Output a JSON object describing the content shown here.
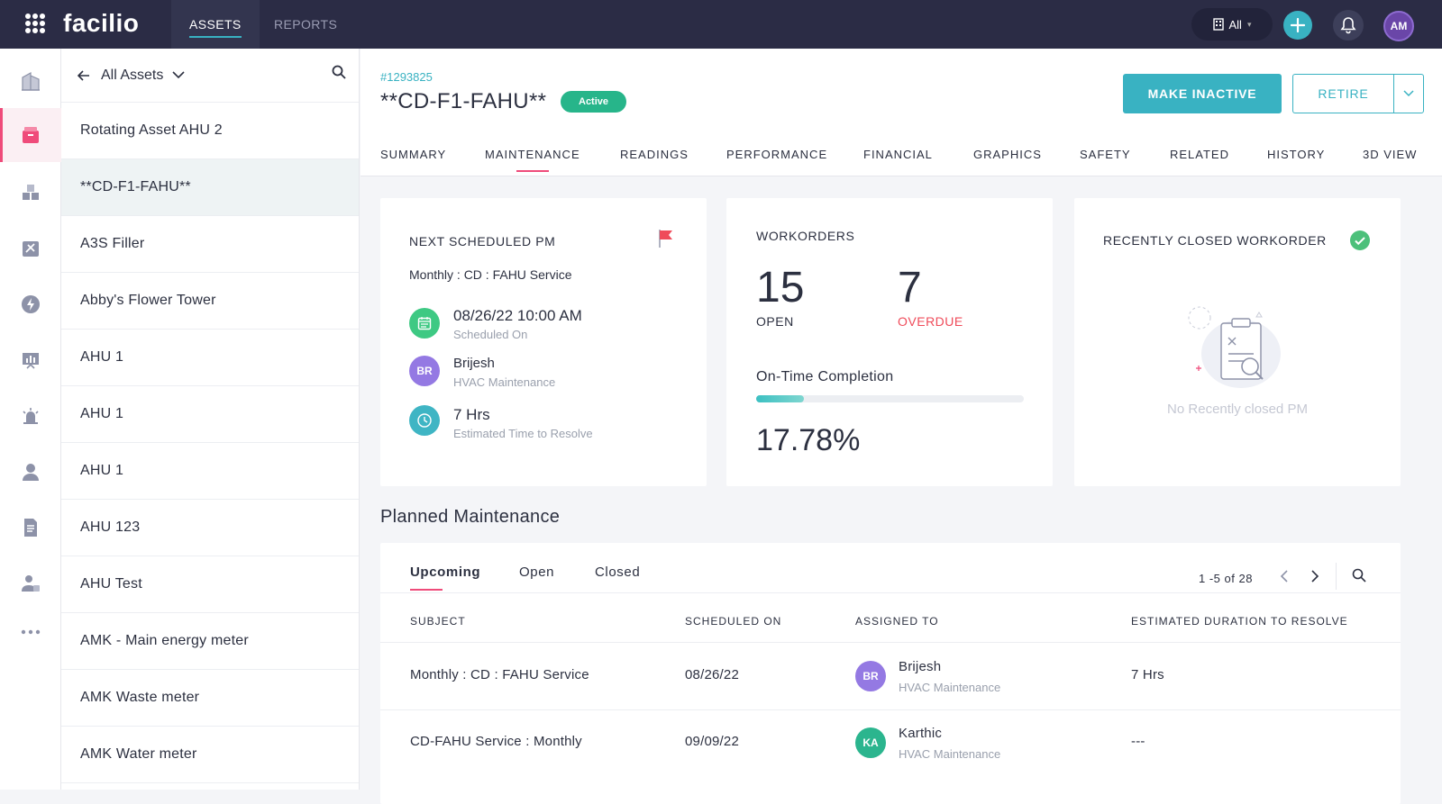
{
  "topbar": {
    "logo": "facilio",
    "tabs": [
      {
        "label": "ASSETS",
        "active": true
      },
      {
        "label": "REPORTS",
        "active": false
      }
    ],
    "site_selector": "All",
    "add_icon": "plus-icon",
    "bell_icon": "bell-icon",
    "user_initials": "AM",
    "colors": {
      "bg": "#2b2c45",
      "accent": "#39b2c2",
      "avatar": "#6a46a8"
    }
  },
  "rail": {
    "items": [
      "buildings-icon",
      "assets-box-icon",
      "inventory-icon",
      "workorder-tools-icon",
      "energy-bolt-icon",
      "dashboard-chart-icon",
      "alarm-icon",
      "people-icon",
      "report-doc-icon",
      "technician-icon",
      "more-icon"
    ],
    "active_index": 1
  },
  "asset_list": {
    "header": "All Assets",
    "items": [
      "Rotating Asset AHU 2",
      "**CD-F1-FAHU**",
      "A3S Filler",
      "Abby's Flower Tower",
      "AHU 1",
      "AHU 1",
      "AHU 1",
      "AHU 123",
      "AHU Test",
      "AMK - Main energy meter",
      "AMK Waste meter",
      "AMK Water meter"
    ],
    "selected_index": 1
  },
  "asset": {
    "id": "#1293825",
    "name": "**CD-F1-FAHU**",
    "status": "Active",
    "make_inactive_label": "MAKE INACTIVE",
    "retire_label": "RETIRE"
  },
  "tabs": [
    "SUMMARY",
    "MAINTENANCE",
    "READINGS",
    "PERFORMANCE",
    "FINANCIAL",
    "GRAPHICS",
    "SAFETY",
    "RELATED",
    "HISTORY",
    "3D VIEW"
  ],
  "next_pm": {
    "title": "NEXT SCHEDULED PM",
    "name": "Monthly : CD : FAHU Service",
    "scheduled": "08/26/22 10:00 AM",
    "scheduled_label": "Scheduled On",
    "assignee_initials": "BR",
    "assignee": "Brijesh",
    "assignee_team": "HVAC Maintenance",
    "duration": "7 Hrs",
    "duration_label": "Estimated Time to Resolve"
  },
  "workorders": {
    "title": "WORKORDERS",
    "open_count": "15",
    "open_label": "OPEN",
    "overdue_count": "7",
    "overdue_label": "OVERDUE",
    "ontime_label": "On-Time Completion",
    "ontime_value": "17.78%",
    "ontime_fraction": 0.1778
  },
  "recent_closed": {
    "title": "RECENTLY CLOSED WORKORDER",
    "empty_text": "No Recently closed PM"
  },
  "planned": {
    "title": "Planned Maintenance",
    "subtabs": [
      "Upcoming",
      "Open",
      "Closed"
    ],
    "pagination": "1 -5 of 28",
    "columns": [
      "SUBJECT",
      "SCHEDULED ON",
      "ASSIGNED TO",
      "ESTIMATED DURATION TO RESOLVE"
    ],
    "rows": [
      {
        "subject": "Monthly : CD : FAHU Service",
        "scheduled": "08/26/22",
        "initials": "BR",
        "assignee": "Brijesh",
        "team": "HVAC Maintenance",
        "duration": "7 Hrs"
      },
      {
        "subject": "CD-FAHU Service : Monthly",
        "scheduled": "09/09/22",
        "initials": "KA",
        "assignee": "Karthic",
        "team": "HVAC Maintenance",
        "duration": "---"
      }
    ]
  }
}
